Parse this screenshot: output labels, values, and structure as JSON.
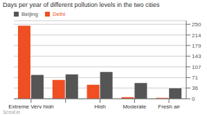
{
  "chart_data": {
    "type": "bar",
    "title": "Days per year of different pollution levels in the two cities",
    "categories": [
      "Extreme Very high",
      null,
      "High",
      "Moderate",
      "Fresh air"
    ],
    "series": [
      {
        "name": "Delhi",
        "color": "#f04e23",
        "values": [
          245,
          63,
          47,
          5,
          3
        ]
      },
      {
        "name": "Beijing",
        "color": "#555555",
        "values": [
          80,
          82,
          90,
          53,
          35
        ]
      }
    ],
    "ylim": [
      0,
      262
    ],
    "yticks": [
      0,
      36,
      71,
      107,
      143,
      179,
      214,
      250
    ],
    "grid": true,
    "legend": "upper left",
    "annotations": [
      "Scroll.in"
    ]
  }
}
